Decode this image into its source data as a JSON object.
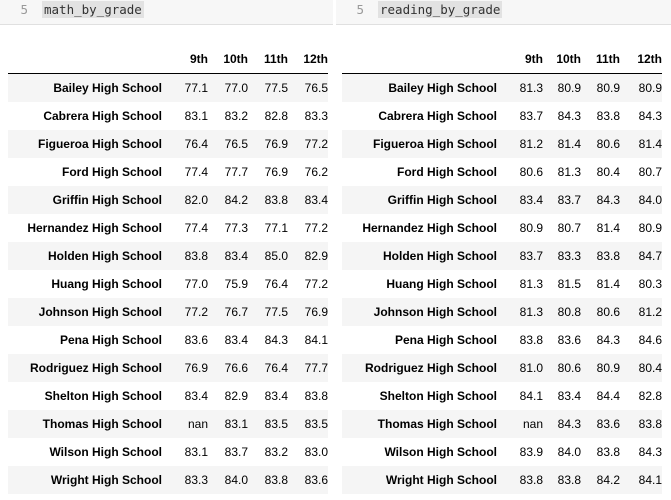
{
  "cells": [
    {
      "line_number": "5",
      "code": "math_by_grade",
      "table": {
        "columns": [
          "9th",
          "10th",
          "11th",
          "12th"
        ],
        "rows": [
          {
            "school": "Bailey High School",
            "values": [
              "77.1",
              "77.0",
              "77.5",
              "76.5"
            ]
          },
          {
            "school": "Cabrera High School",
            "values": [
              "83.1",
              "83.2",
              "82.8",
              "83.3"
            ]
          },
          {
            "school": "Figueroa High School",
            "values": [
              "76.4",
              "76.5",
              "76.9",
              "77.2"
            ]
          },
          {
            "school": "Ford High School",
            "values": [
              "77.4",
              "77.7",
              "76.9",
              "76.2"
            ]
          },
          {
            "school": "Griffin High School",
            "values": [
              "82.0",
              "84.2",
              "83.8",
              "83.4"
            ]
          },
          {
            "school": "Hernandez High School",
            "values": [
              "77.4",
              "77.3",
              "77.1",
              "77.2"
            ]
          },
          {
            "school": "Holden High School",
            "values": [
              "83.8",
              "83.4",
              "85.0",
              "82.9"
            ]
          },
          {
            "school": "Huang High School",
            "values": [
              "77.0",
              "75.9",
              "76.4",
              "77.2"
            ]
          },
          {
            "school": "Johnson High School",
            "values": [
              "77.2",
              "76.7",
              "77.5",
              "76.9"
            ]
          },
          {
            "school": "Pena High School",
            "values": [
              "83.6",
              "83.4",
              "84.3",
              "84.1"
            ]
          },
          {
            "school": "Rodriguez High School",
            "values": [
              "76.9",
              "76.6",
              "76.4",
              "77.7"
            ]
          },
          {
            "school": "Shelton High School",
            "values": [
              "83.4",
              "82.9",
              "83.4",
              "83.8"
            ]
          },
          {
            "school": "Thomas High School",
            "values": [
              "nan",
              "83.1",
              "83.5",
              "83.5"
            ]
          },
          {
            "school": "Wilson High School",
            "values": [
              "83.1",
              "83.7",
              "83.2",
              "83.0"
            ]
          },
          {
            "school": "Wright High School",
            "values": [
              "83.3",
              "84.0",
              "83.8",
              "83.6"
            ]
          }
        ]
      }
    },
    {
      "line_number": "5",
      "code": "reading_by_grade",
      "table": {
        "columns": [
          "9th",
          "10th",
          "11th",
          "12th"
        ],
        "rows": [
          {
            "school": "Bailey High School",
            "values": [
              "81.3",
              "80.9",
              "80.9",
              "80.9"
            ]
          },
          {
            "school": "Cabrera High School",
            "values": [
              "83.7",
              "84.3",
              "83.8",
              "84.3"
            ]
          },
          {
            "school": "Figueroa High School",
            "values": [
              "81.2",
              "81.4",
              "80.6",
              "81.4"
            ]
          },
          {
            "school": "Ford High School",
            "values": [
              "80.6",
              "81.3",
              "80.4",
              "80.7"
            ]
          },
          {
            "school": "Griffin High School",
            "values": [
              "83.4",
              "83.7",
              "84.3",
              "84.0"
            ]
          },
          {
            "school": "Hernandez High School",
            "values": [
              "80.9",
              "80.7",
              "81.4",
              "80.9"
            ]
          },
          {
            "school": "Holden High School",
            "values": [
              "83.7",
              "83.3",
              "83.8",
              "84.7"
            ]
          },
          {
            "school": "Huang High School",
            "values": [
              "81.3",
              "81.5",
              "81.4",
              "80.3"
            ]
          },
          {
            "school": "Johnson High School",
            "values": [
              "81.3",
              "80.8",
              "80.6",
              "81.2"
            ]
          },
          {
            "school": "Pena High School",
            "values": [
              "83.8",
              "83.6",
              "84.3",
              "84.6"
            ]
          },
          {
            "school": "Rodriguez High School",
            "values": [
              "81.0",
              "80.6",
              "80.9",
              "80.4"
            ]
          },
          {
            "school": "Shelton High School",
            "values": [
              "84.1",
              "83.4",
              "84.4",
              "82.8"
            ]
          },
          {
            "school": "Thomas High School",
            "values": [
              "nan",
              "84.3",
              "83.6",
              "83.8"
            ]
          },
          {
            "school": "Wilson High School",
            "values": [
              "83.9",
              "84.0",
              "83.8",
              "84.3"
            ]
          },
          {
            "school": "Wright High School",
            "values": [
              "83.8",
              "83.8",
              "84.2",
              "84.1"
            ]
          }
        ]
      }
    }
  ]
}
